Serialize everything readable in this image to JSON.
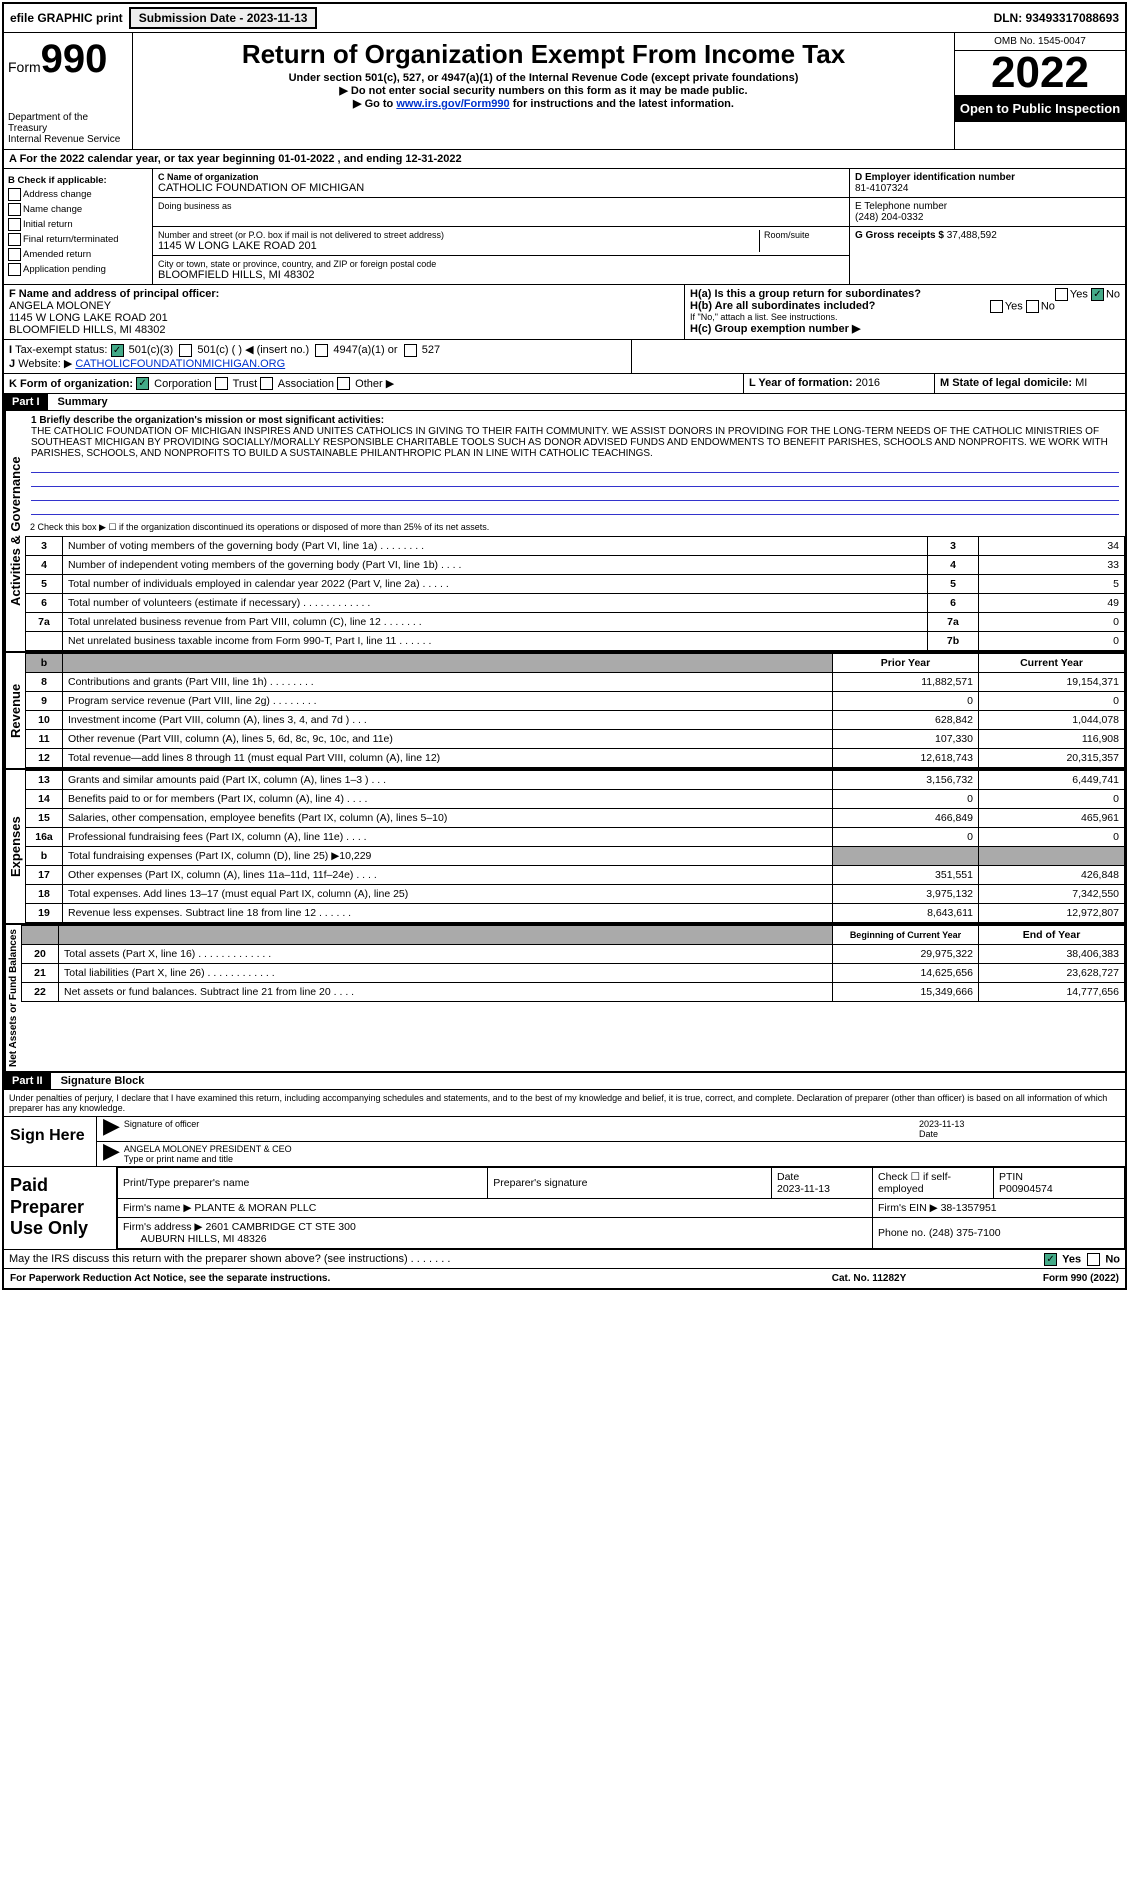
{
  "top": {
    "efile": "efile GRAPHIC print",
    "submission": "Submission Date - 2023-11-13",
    "dln": "DLN: 93493317088693"
  },
  "header": {
    "form_prefix": "Form",
    "form_num": "990",
    "title": "Return of Organization Exempt From Income Tax",
    "sub1": "Under section 501(c), 527, or 4947(a)(1) of the Internal Revenue Code (except private foundations)",
    "sub2": "▶ Do not enter social security numbers on this form as it may be made public.",
    "sub3_pre": "▶ Go to ",
    "sub3_link": "www.irs.gov/Form990",
    "sub3_post": " for instructions and the latest information.",
    "dept": "Department of the Treasury",
    "irs": "Internal Revenue Service",
    "omb": "OMB No. 1545-0047",
    "year": "2022",
    "open": "Open to Public Inspection"
  },
  "lineA": "A For the 2022 calendar year, or tax year beginning 01-01-2022    , and ending 12-31-2022",
  "boxB": {
    "title": "B Check if applicable:",
    "items": [
      "Address change",
      "Name change",
      "Initial return",
      "Final return/terminated",
      "Amended return",
      "Application pending"
    ]
  },
  "boxC": {
    "label": "C Name of organization",
    "org": "CATHOLIC FOUNDATION OF MICHIGAN",
    "dba": "Doing business as",
    "street_label": "Number and street (or P.O. box if mail is not delivered to street address)",
    "room": "Room/suite",
    "street": "1145 W LONG LAKE ROAD 201",
    "city_label": "City or town, state or province, country, and ZIP or foreign postal code",
    "city": "BLOOMFIELD HILLS, MI  48302"
  },
  "boxD": {
    "label": "D Employer identification number",
    "val": "81-4107324"
  },
  "boxE": {
    "label": "E Telephone number",
    "val": "(248) 204-0332"
  },
  "boxG": {
    "label": "G Gross receipts $",
    "val": "37,488,592"
  },
  "boxF": {
    "label": "F  Name and address of principal officer:",
    "name": "ANGELA MOLONEY",
    "addr1": "1145 W LONG LAKE ROAD 201",
    "addr2": "BLOOMFIELD HILLS, MI  48302"
  },
  "boxH": {
    "ha": "H(a)  Is this a group return for subordinates?",
    "hb": "H(b)  Are all subordinates included?",
    "hb_note": "If \"No,\" attach a list. See instructions.",
    "hc": "H(c)  Group exemption number ▶",
    "yes": "Yes",
    "no": "No"
  },
  "boxI": {
    "label": "Tax-exempt status:",
    "o1": "501(c)(3)",
    "o2": "501(c) (  ) ◀ (insert no.)",
    "o3": "4947(a)(1) or",
    "o4": "527"
  },
  "boxJ": {
    "label": "Website: ▶",
    "val": "CATHOLICFOUNDATIONMICHIGAN.ORG"
  },
  "boxK": {
    "label": "K Form of organization:",
    "o1": "Corporation",
    "o2": "Trust",
    "o3": "Association",
    "o4": "Other ▶"
  },
  "boxL": {
    "label": "L Year of formation:",
    "val": "2016"
  },
  "boxM": {
    "label": "M State of legal domicile:",
    "val": "MI"
  },
  "part1": {
    "hdr": "Part I",
    "title": "Summary"
  },
  "mission": {
    "label": "1   Briefly describe the organization's mission or most significant activities:",
    "text": "THE CATHOLIC FOUNDATION OF MICHIGAN INSPIRES AND UNITES CATHOLICS IN GIVING TO THEIR FAITH COMMUNITY. WE ASSIST DONORS IN PROVIDING FOR THE LONG-TERM NEEDS OF THE CATHOLIC MINISTRIES OF SOUTHEAST MICHIGAN BY PROVIDING SOCIALLY/MORALLY RESPONSIBLE CHARITABLE TOOLS SUCH AS DONOR ADVISED FUNDS AND ENDOWMENTS TO BENEFIT PARISHES, SCHOOLS AND NONPROFITS. WE WORK WITH PARISHES, SCHOOLS, AND NONPROFITS TO BUILD A SUSTAINABLE PHILANTHROPIC PLAN IN LINE WITH CATHOLIC TEACHINGS."
  },
  "line2": "2   Check this box ▶ ☐ if the organization discontinued its operations or disposed of more than 25% of its net assets.",
  "gov_rows": [
    {
      "n": "3",
      "t": "Number of voting members of the governing body (Part VI, line 1a)   .    .    .    .    .    .    .    .",
      "c": "3",
      "v": "34"
    },
    {
      "n": "4",
      "t": "Number of independent voting members of the governing body (Part VI, line 1b)    .    .    .    .",
      "c": "4",
      "v": "33"
    },
    {
      "n": "5",
      "t": "Total number of individuals employed in calendar year 2022 (Part V, line 2a)    .    .    .    .    .",
      "c": "5",
      "v": "5"
    },
    {
      "n": "6",
      "t": "Total number of volunteers (estimate if necessary)    .    .    .    .    .    .    .    .    .    .    .    .",
      "c": "6",
      "v": "49"
    },
    {
      "n": "7a",
      "t": "Total unrelated business revenue from Part VIII, column (C), line 12   .    .    .    .    .    .    .",
      "c": "7a",
      "v": "0"
    },
    {
      "n": "",
      "t": "Net unrelated business taxable income from Form 990-T, Part I, line 11    .    .    .    .    .    .",
      "c": "7b",
      "v": "0"
    }
  ],
  "rev_hdr": {
    "b": "b",
    "py": "Prior Year",
    "cy": "Current Year"
  },
  "rev_rows": [
    {
      "n": "8",
      "t": "Contributions and grants (Part VIII, line 1h)    .    .    .    .    .    .    .    .",
      "p": "11,882,571",
      "c": "19,154,371"
    },
    {
      "n": "9",
      "t": "Program service revenue (Part VIII, line 2g)    .    .    .    .    .    .    .    .",
      "p": "0",
      "c": "0"
    },
    {
      "n": "10",
      "t": "Investment income (Part VIII, column (A), lines 3, 4, and 7d )    .    .    .",
      "p": "628,842",
      "c": "1,044,078"
    },
    {
      "n": "11",
      "t": "Other revenue (Part VIII, column (A), lines 5, 6d, 8c, 9c, 10c, and 11e)",
      "p": "107,330",
      "c": "116,908"
    },
    {
      "n": "12",
      "t": "Total revenue—add lines 8 through 11 (must equal Part VIII, column (A), line 12)",
      "p": "12,618,743",
      "c": "20,315,357"
    }
  ],
  "exp_rows": [
    {
      "n": "13",
      "t": "Grants and similar amounts paid (Part IX, column (A), lines 1–3 )    .    .    .",
      "p": "3,156,732",
      "c": "6,449,741"
    },
    {
      "n": "14",
      "t": "Benefits paid to or for members (Part IX, column (A), line 4)    .    .    .    .",
      "p": "0",
      "c": "0"
    },
    {
      "n": "15",
      "t": "Salaries, other compensation, employee benefits (Part IX, column (A), lines 5–10)",
      "p": "466,849",
      "c": "465,961"
    },
    {
      "n": "16a",
      "t": "Professional fundraising fees (Part IX, column (A), line 11e)    .    .    .    .",
      "p": "0",
      "c": "0"
    },
    {
      "n": "b",
      "t": "Total fundraising expenses (Part IX, column (D), line 25) ▶10,229",
      "p": "grey",
      "c": "grey"
    },
    {
      "n": "17",
      "t": "Other expenses (Part IX, column (A), lines 11a–11d, 11f–24e)    .    .    .    .",
      "p": "351,551",
      "c": "426,848"
    },
    {
      "n": "18",
      "t": "Total expenses. Add lines 13–17 (must equal Part IX, column (A), line 25)",
      "p": "3,975,132",
      "c": "7,342,550"
    },
    {
      "n": "19",
      "t": "Revenue less expenses. Subtract line 18 from line 12    .    .    .    .    .    .",
      "p": "8,643,611",
      "c": "12,972,807"
    }
  ],
  "net_hdr": {
    "b": "Beginning of Current Year",
    "e": "End of Year"
  },
  "net_rows": [
    {
      "n": "20",
      "t": "Total assets (Part X, line 16)    .    .    .    .    .    .    .    .    .    .    .    .    .",
      "p": "29,975,322",
      "c": "38,406,383"
    },
    {
      "n": "21",
      "t": "Total liabilities (Part X, line 26)    .    .    .    .    .    .    .    .    .    .    .    .",
      "p": "14,625,656",
      "c": "23,628,727"
    },
    {
      "n": "22",
      "t": "Net assets or fund balances. Subtract line 21 from line 20    .    .    .    .",
      "p": "15,349,666",
      "c": "14,777,656"
    }
  ],
  "vlabels": {
    "gov": "Activities & Governance",
    "rev": "Revenue",
    "exp": "Expenses",
    "net": "Net Assets or Fund Balances"
  },
  "part2": {
    "hdr": "Part II",
    "title": "Signature Block"
  },
  "sig": {
    "decl": "Under penalties of perjury, I declare that I have examined this return, including accompanying schedules and statements, and to the best of my knowledge and belief, it is true, correct, and complete. Declaration of preparer (other than officer) is based on all information of which preparer has any knowledge.",
    "sign_here": "Sign Here",
    "sig_officer": "Signature of officer",
    "date": "2023-11-13",
    "date_lbl": "Date",
    "name": "ANGELA MOLONEY PRESIDENT & CEO",
    "name_lbl": "Type or print name and title"
  },
  "prep": {
    "title": "Paid Preparer Use Only",
    "h1": "Print/Type preparer's name",
    "h2": "Preparer's signature",
    "h3": "Date",
    "date": "2023-11-13",
    "h4": "Check ☐ if self-employed",
    "h5": "PTIN",
    "ptin": "P00904574",
    "firm_lbl": "Firm's name    ▶",
    "firm": "PLANTE & MORAN PLLC",
    "ein_lbl": "Firm's EIN ▶",
    "ein": "38-1357951",
    "addr_lbl": "Firm's address ▶",
    "addr1": "2601 CAMBRIDGE CT STE 300",
    "addr2": "AUBURN HILLS, MI  48326",
    "phone_lbl": "Phone no.",
    "phone": "(248) 375-7100"
  },
  "footer": {
    "q": "May the IRS discuss this return with the preparer shown above? (see instructions)    .    .    .    .    .    .    .",
    "yes": "Yes",
    "no": "No",
    "pra": "For Paperwork Reduction Act Notice, see the separate instructions.",
    "cat": "Cat. No. 11282Y",
    "form": "Form 990 (2022)"
  }
}
